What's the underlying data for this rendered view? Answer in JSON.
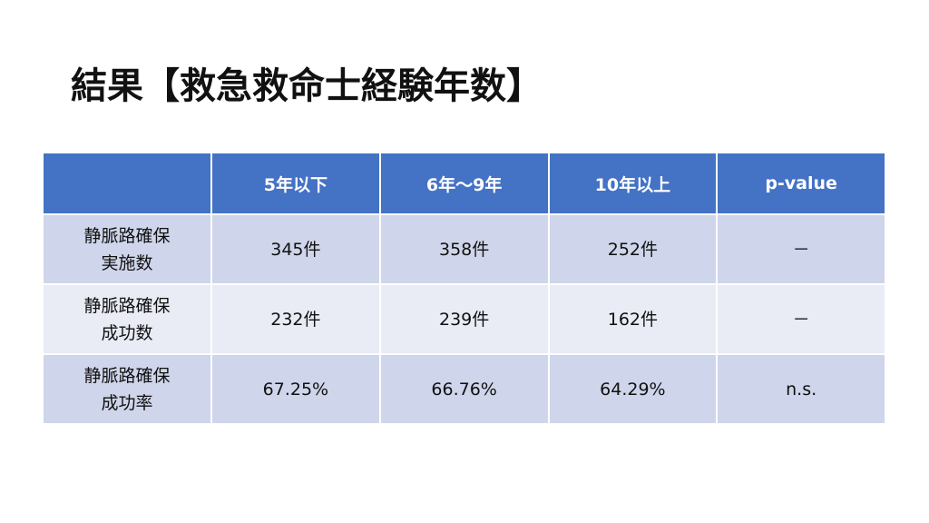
{
  "header": {
    "title": "結果【救急救命士経験年数】"
  },
  "table": {
    "columns": [
      "5年以下",
      "6年～9年",
      "10年以上",
      "p-value"
    ],
    "rows": [
      {
        "label": [
          "静脈路確保",
          "実施数"
        ],
        "cells": [
          "345件",
          "358件",
          "252件",
          "－"
        ]
      },
      {
        "label": [
          "静脈路確保",
          "成功数"
        ],
        "cells": [
          "232件",
          "239件",
          "162件",
          "－"
        ]
      },
      {
        "label": [
          "静脈路確保",
          "成功率"
        ],
        "cells": [
          "67.25%",
          "66.76%",
          "64.29%",
          "n.s."
        ]
      }
    ]
  }
}
